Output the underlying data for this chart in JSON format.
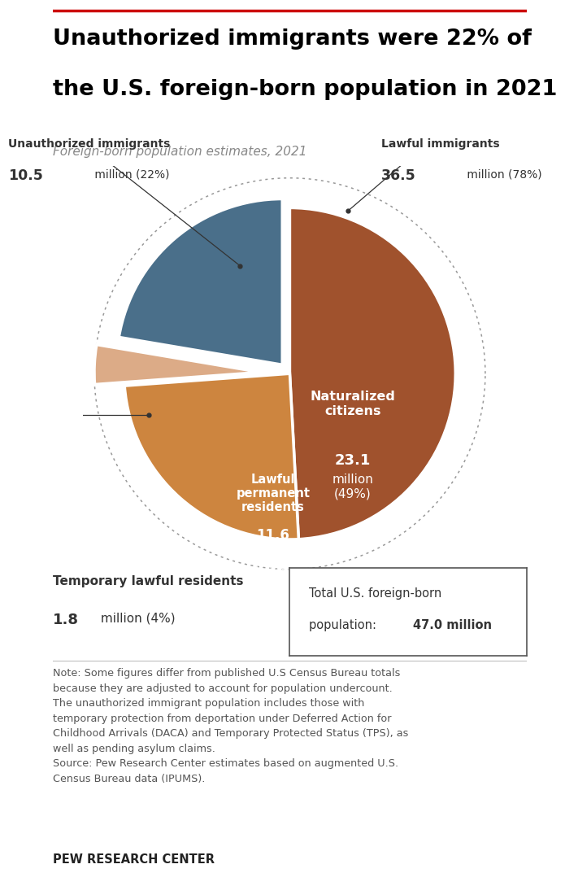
{
  "title_line1": "Unauthorized immigrants were 22% of",
  "title_line2": "the U.S. foreign-born population in 2021",
  "subtitle": "Foreign-born population estimates, 2021",
  "slices": [
    {
      "label": "Naturalized citizens",
      "value": 23.1,
      "pct": 49,
      "color": "#A0522D"
    },
    {
      "label": "Lawful permanent residents",
      "value": 11.6,
      "pct": 25,
      "color": "#CD853F"
    },
    {
      "label": "Temporary lawful residents",
      "value": 1.8,
      "pct": 4,
      "color": "#DCAB87"
    },
    {
      "label": "Unauthorized immigrants",
      "value": 10.5,
      "pct": 22,
      "color": "#4A6F8A"
    }
  ],
  "total_label": "Total U.S. foreign-born\npopulation: ",
  "total_value": "47.0 million",
  "note_text": "Note: Some figures differ from published U.S Census Bureau totals\nbecause they are adjusted to account for population undercount.\nThe unauthorized immigrant population includes those with\ntemporary protection from deportation under Deferred Action for\nChildhood Arrivals (DACA) and Temporary Protected Status (TPS), as\nwell as pending asylum claims.\nSource: Pew Research Center estimates based on augmented U.S.\nCensus Bureau data (IPUMS).",
  "footer": "PEW RESEARCH CENTER",
  "bg_color": "#FFFFFF",
  "dotted_circle_color": "#999999",
  "explode": [
    0,
    0,
    0.18,
    0.07
  ],
  "red_line_color": "#CC0000"
}
